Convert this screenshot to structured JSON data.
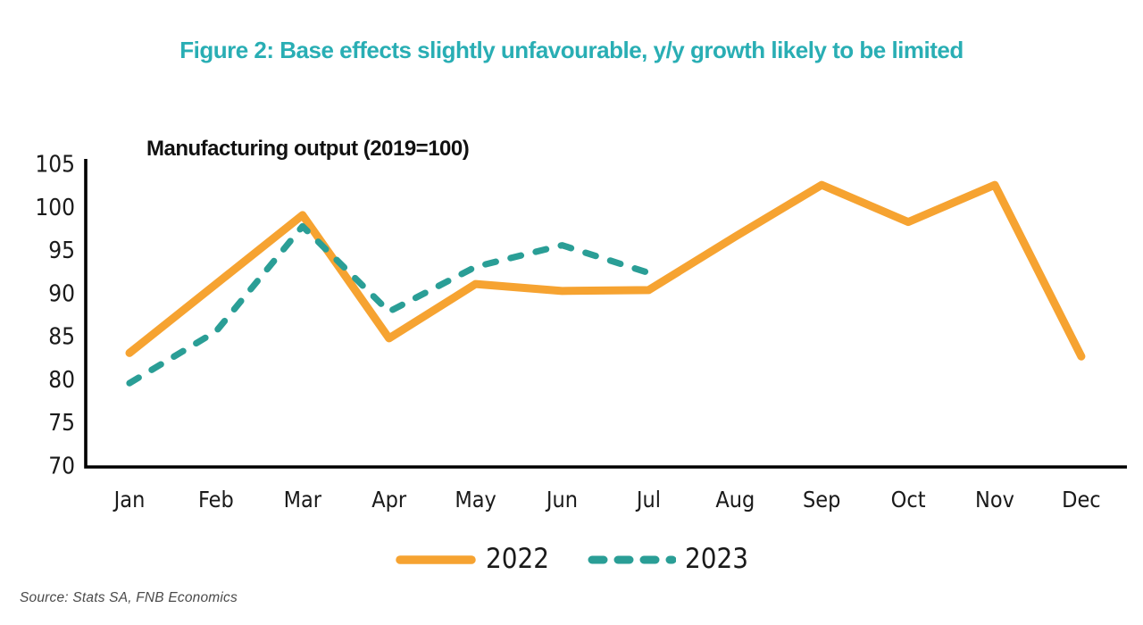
{
  "figure": {
    "title": "Figure 2: Base effects slightly unfavourable, y/y growth likely to be limited",
    "title_color": "#29aeb4",
    "source": "Source: Stats SA, FNB Economics"
  },
  "chart_data": {
    "type": "line",
    "subtitle": "Manufacturing output (2019=100)",
    "categories": [
      "Jan",
      "Feb",
      "Mar",
      "Apr",
      "May",
      "Jun",
      "Jul",
      "Aug",
      "Sep",
      "Oct",
      "Nov",
      "Dec"
    ],
    "series": [
      {
        "name": "2022",
        "color": "#f6a331",
        "style": "solid",
        "values": [
          83,
          91,
          99,
          84.7,
          91,
          90.2,
          90.3,
          96.5,
          102.5,
          98.2,
          102.5,
          82.6
        ]
      },
      {
        "name": "2023",
        "color": "#2a9e96",
        "style": "dashed",
        "values": [
          79.5,
          85.5,
          97.7,
          87.8,
          93,
          95.5,
          92.3,
          null,
          null,
          null,
          null,
          null
        ]
      }
    ],
    "ylabel": "",
    "xlabel": "",
    "ylim": [
      70,
      105
    ],
    "yticks": [
      70,
      75,
      80,
      85,
      90,
      95,
      100,
      105
    ],
    "grid": false,
    "axis_color": "#000000",
    "legend_position": "bottom"
  }
}
